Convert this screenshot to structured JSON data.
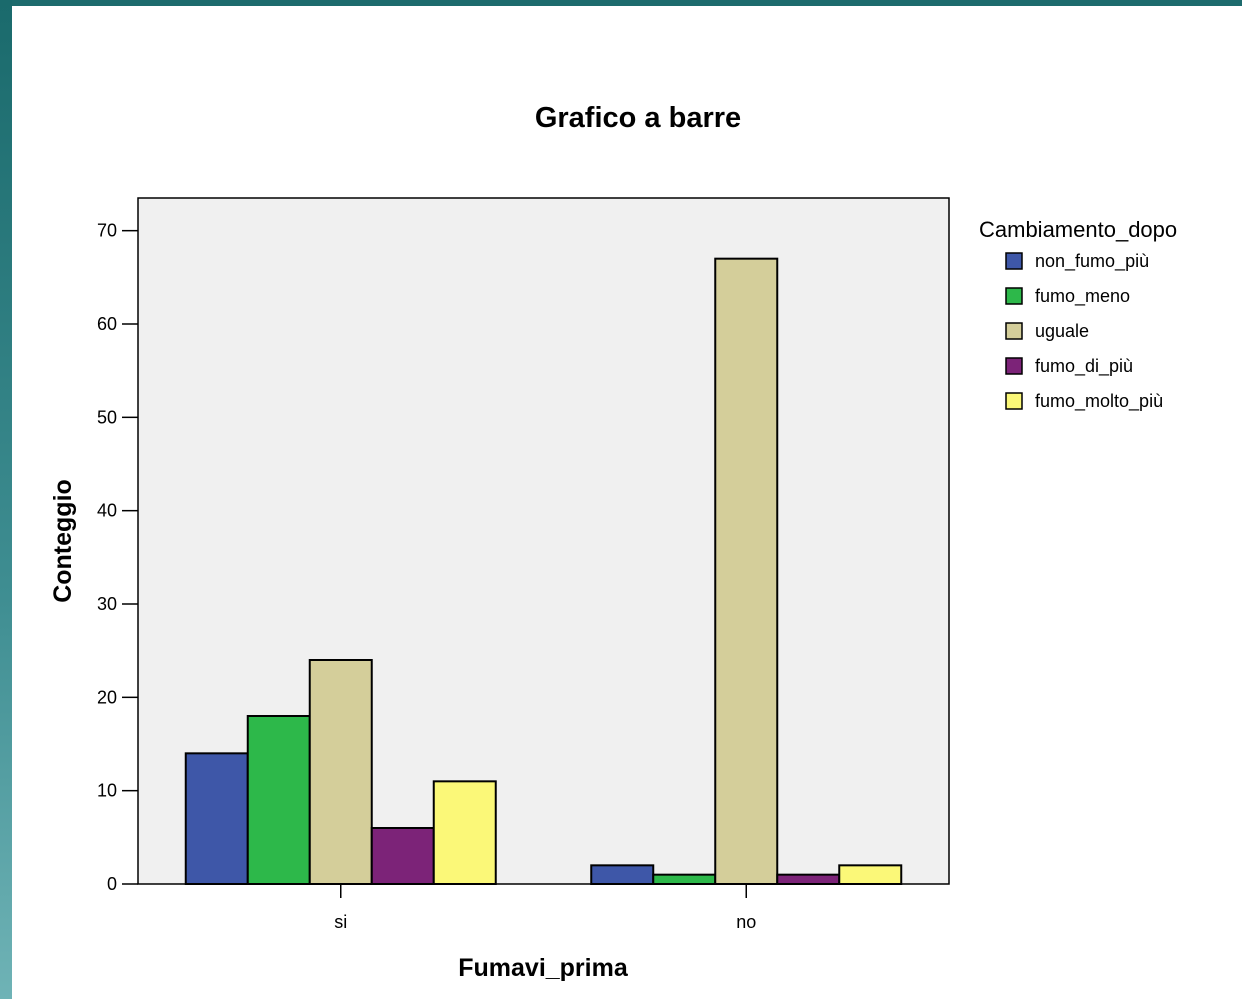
{
  "chart_data": {
    "type": "bar",
    "title": "Grafico a barre",
    "xlabel": "Fumavi_prima",
    "ylabel": "Conteggio",
    "categories": [
      "si",
      "no"
    ],
    "ylim": [
      0,
      73.5
    ],
    "yticks": [
      0,
      10,
      20,
      30,
      40,
      50,
      60,
      70
    ],
    "grid": false,
    "legend": {
      "title": "Cambiamento_dopo",
      "position": "right"
    },
    "series": [
      {
        "name": "non_fumo_più",
        "color": "#3e57a8",
        "values": [
          14,
          2
        ]
      },
      {
        "name": "fumo_meno",
        "color": "#2db84a",
        "values": [
          18,
          1
        ]
      },
      {
        "name": "uguale",
        "color": "#d4ce9a",
        "values": [
          24,
          67
        ]
      },
      {
        "name": "fumo_di_più",
        "color": "#7c2378",
        "values": [
          6,
          1
        ]
      },
      {
        "name": "fumo_molto_più",
        "color": "#fbf878",
        "values": [
          11,
          2
        ]
      }
    ]
  }
}
